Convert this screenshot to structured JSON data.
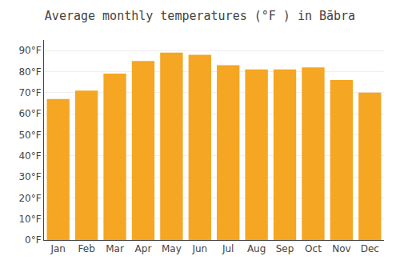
{
  "chart_data": {
    "type": "bar",
    "title": "Average monthly temperatures (°F ) in Bābra",
    "categories": [
      "Jan",
      "Feb",
      "Mar",
      "Apr",
      "May",
      "Jun",
      "Jul",
      "Aug",
      "Sep",
      "Oct",
      "Nov",
      "Dec"
    ],
    "values": [
      67,
      71,
      79,
      85,
      89,
      88,
      83,
      81,
      81,
      82,
      76,
      70
    ],
    "color": "#F5A623",
    "ylim": [
      0,
      95
    ],
    "yticks": [
      {
        "value": 0,
        "label": "0°F"
      },
      {
        "value": 10,
        "label": "10°F"
      },
      {
        "value": 20,
        "label": "20°F"
      },
      {
        "value": 30,
        "label": "30°F"
      },
      {
        "value": 40,
        "label": "40°F"
      },
      {
        "value": 50,
        "label": "50°F"
      },
      {
        "value": 60,
        "label": "60°F"
      },
      {
        "value": 70,
        "label": "70°F"
      },
      {
        "value": 80,
        "label": "80°F"
      },
      {
        "value": 90,
        "label": "90°F"
      }
    ],
    "grid": true
  }
}
